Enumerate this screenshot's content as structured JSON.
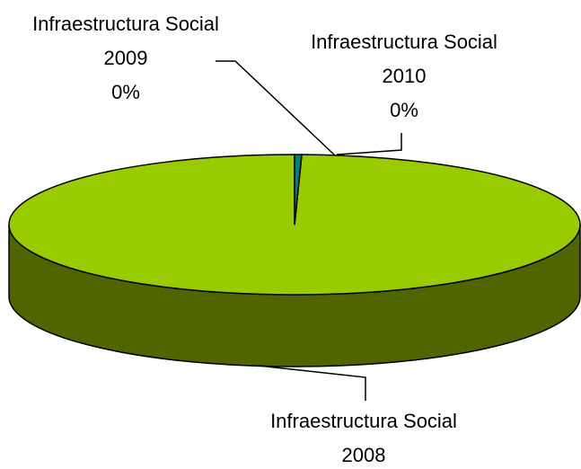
{
  "chart_data": {
    "type": "pie3d",
    "categories": [
      "Infraestructura Social 2008",
      "Infraestructura Social 2009",
      "Infraestructura Social 2010"
    ],
    "values": [
      99.6,
      0,
      0.4
    ],
    "value_labels": [
      null,
      "0%",
      "0%"
    ],
    "colors": [
      "#99cc00",
      "#9999ff",
      "#008080"
    ],
    "side_colors": [
      "#4f6600",
      "#4c4c80",
      "#004040"
    ]
  }
}
